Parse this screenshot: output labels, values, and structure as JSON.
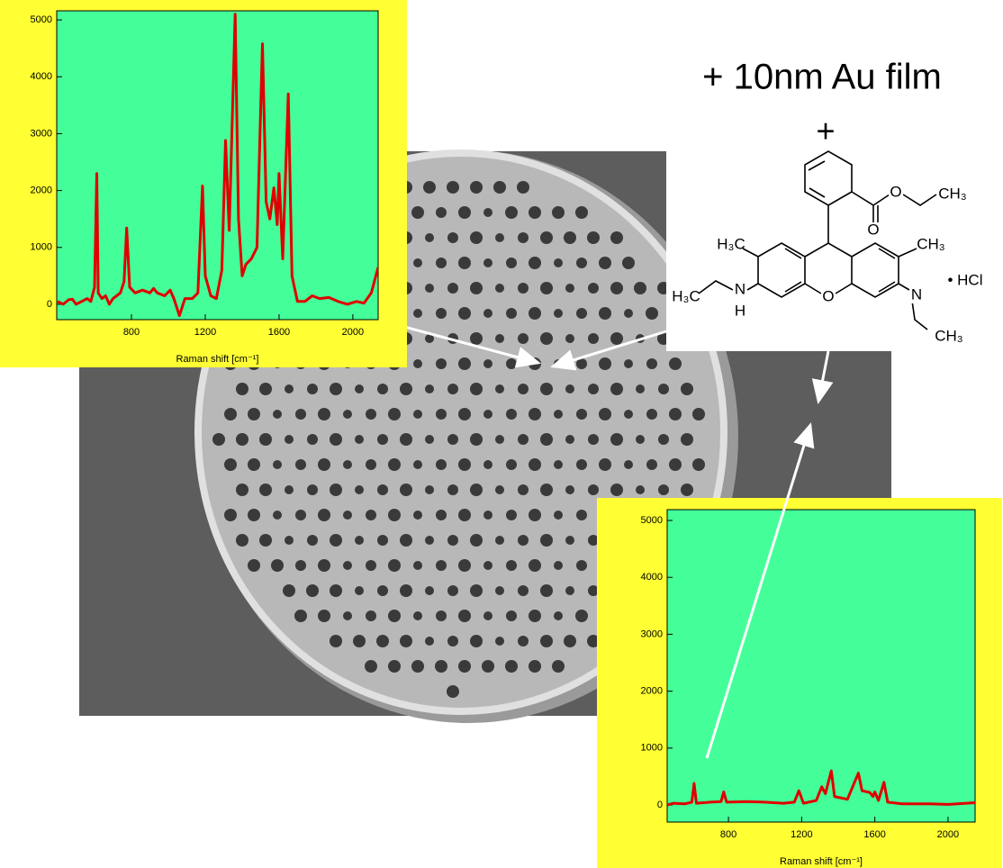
{
  "title": "+ 10nm Au film",
  "plus_sign": "+",
  "molecule": {
    "labels": [
      "O",
      "O",
      "CH₃",
      "H₃C",
      "CH₃",
      "H₃C",
      "N",
      "H",
      "O",
      "N",
      "CH₃",
      "• HCl"
    ]
  },
  "chart_data": [
    {
      "type": "line",
      "background": "#ffff33",
      "plot_background": "#44ff99",
      "x_label": "Raman shift [cm⁻¹]",
      "xlim": [
        395,
        2137
      ],
      "ylim": [
        -270,
        5160
      ],
      "xticks": [
        800,
        1200,
        1600,
        2000
      ],
      "yticks": [
        0,
        1000,
        2000,
        3000,
        4000,
        5000
      ],
      "x": [
        400,
        430,
        460,
        480,
        500,
        530,
        560,
        580,
        600,
        612,
        620,
        640,
        660,
        680,
        700,
        720,
        740,
        760,
        774,
        790,
        820,
        860,
        900,
        920,
        940,
        980,
        1010,
        1030,
        1060,
        1090,
        1130,
        1160,
        1185,
        1200,
        1230,
        1260,
        1290,
        1310,
        1330,
        1362,
        1380,
        1400,
        1420,
        1450,
        1480,
        1510,
        1530,
        1550,
        1572,
        1590,
        1600,
        1620,
        1650,
        1670,
        1700,
        1740,
        1780,
        1820,
        1870,
        1920,
        1970,
        2020,
        2060,
        2100,
        2137
      ],
      "series": [
        {
          "color": "#e00000",
          "values": [
            50,
            0,
            80,
            90,
            0,
            50,
            100,
            50,
            300,
            2300,
            200,
            100,
            150,
            0,
            100,
            150,
            200,
            400,
            1340,
            300,
            200,
            250,
            200,
            280,
            200,
            150,
            250,
            100,
            -200,
            100,
            100,
            200,
            2080,
            500,
            150,
            100,
            600,
            2880,
            1300,
            5100,
            1500,
            500,
            700,
            800,
            1000,
            4580,
            1800,
            1500,
            2050,
            1400,
            2300,
            800,
            3700,
            500,
            50,
            50,
            150,
            100,
            120,
            50,
            0,
            50,
            20,
            200,
            650
          ]
        }
      ]
    },
    {
      "type": "line",
      "background": "#ffff33",
      "plot_background": "#44ff99",
      "x_label": "Raman shift [cm⁻¹]",
      "xlim": [
        465,
        2148
      ],
      "ylim": [
        -300,
        5190
      ],
      "xticks": [
        800,
        1200,
        1600,
        2000
      ],
      "yticks": [
        0,
        1000,
        2000,
        3000,
        4000,
        5000
      ],
      "x": [
        465,
        500,
        560,
        600,
        612,
        625,
        700,
        760,
        774,
        790,
        900,
        1000,
        1100,
        1160,
        1185,
        1210,
        1280,
        1310,
        1330,
        1362,
        1380,
        1450,
        1510,
        1530,
        1572,
        1590,
        1600,
        1620,
        1650,
        1670,
        1750,
        1900,
        2000,
        2148
      ],
      "series": [
        {
          "color": "#e00000",
          "values": [
            0,
            30,
            20,
            50,
            380,
            30,
            50,
            60,
            230,
            50,
            60,
            50,
            30,
            50,
            250,
            30,
            80,
            320,
            200,
            600,
            150,
            100,
            560,
            250,
            220,
            150,
            230,
            80,
            400,
            50,
            20,
            20,
            10,
            40
          ]
        }
      ]
    }
  ]
}
